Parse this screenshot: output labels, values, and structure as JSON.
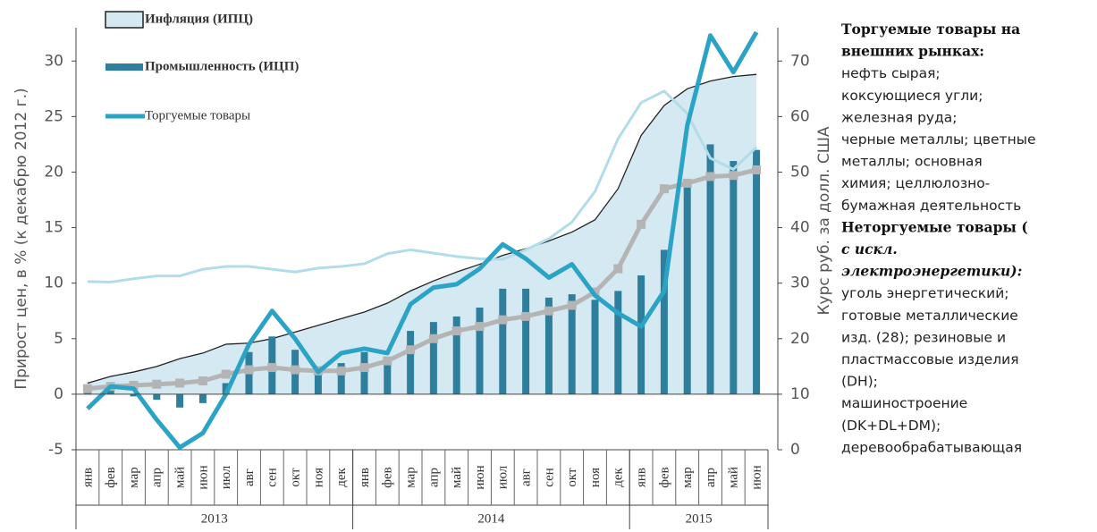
{
  "chart_data": {
    "type": "combo",
    "ylabel": "Прирост цен, в % (к декабрю 2012 г.)",
    "y2label": "Курс руб. за долл. США",
    "categories": [
      "янв",
      "фев",
      "мар",
      "апр",
      "май",
      "июн",
      "июл",
      "авг",
      "сен",
      "окт",
      "ноя",
      "дек",
      "янв",
      "фев",
      "мар",
      "апр",
      "май",
      "июн",
      "июл",
      "авг",
      "сен",
      "окт",
      "ноя",
      "дек",
      "янв",
      "фев",
      "мар",
      "апр",
      "май",
      "июн"
    ],
    "years": [
      {
        "label": "2013",
        "start": 0,
        "count": 12
      },
      {
        "label": "2014",
        "start": 12,
        "count": 12
      },
      {
        "label": "2015",
        "start": 24,
        "count": 6
      }
    ],
    "ylim": [
      -5,
      33
    ],
    "yticks": [
      -5,
      0,
      5,
      10,
      15,
      20,
      25,
      30
    ],
    "y2lim": [
      0,
      76
    ],
    "y2ticks": [
      0,
      10,
      20,
      30,
      40,
      50,
      60,
      70
    ],
    "legend": "top-left",
    "series": [
      {
        "name": "Инфляция (ИПЦ)",
        "kind": "area",
        "color": "#d4e9f1",
        "values": [
          1,
          1.6,
          2,
          2.5,
          3.2,
          3.7,
          4.5,
          4.6,
          5.0,
          5.6,
          6.2,
          6.8,
          7.4,
          8.2,
          9.3,
          10.2,
          11.0,
          11.7,
          12.5,
          13.1,
          13.8,
          14.6,
          15.7,
          18.5,
          23.3,
          26.0,
          27.5,
          28.2,
          28.6,
          28.8
        ]
      },
      {
        "name": "Промышленность (ИЦП)",
        "kind": "bar",
        "color": "#2e7f9e",
        "values": [
          0.3,
          0.5,
          -0.2,
          -0.5,
          -1.2,
          -0.8,
          1,
          3.8,
          5.2,
          4,
          2.5,
          2.8,
          3.8,
          2.8,
          5.7,
          6.5,
          7,
          7.8,
          9.5,
          9.5,
          8.7,
          9,
          8.5,
          9.3,
          10.7,
          13,
          19,
          22.5,
          21,
          22
        ]
      },
      {
        "kind": "line",
        "axis": "y2",
        "color": "#b3dce9",
        "values": [
          30.3,
          30.2,
          30.8,
          31.3,
          31.3,
          32.5,
          33,
          33,
          32.5,
          32,
          32.7,
          33,
          33.5,
          35.3,
          36,
          35.4,
          34.8,
          34.4,
          34.3,
          36,
          38,
          41,
          46.5,
          56,
          62.5,
          64.6,
          60.5,
          52.5,
          50.5,
          54.5
        ]
      },
      {
        "kind": "marker-line",
        "color": "#b4b4b4",
        "values": [
          0.5,
          0.7,
          0.8,
          0.9,
          1.0,
          1.2,
          1.8,
          2.2,
          2.4,
          2.2,
          2.1,
          2.1,
          2.4,
          3.0,
          4.0,
          5.0,
          5.7,
          6.1,
          6.7,
          7.0,
          7.5,
          8.0,
          9.2,
          11.3,
          15.3,
          18.5,
          19,
          19.6,
          19.7,
          20.2
        ]
      },
      {
        "name": "Торгуемые товары",
        "kind": "line",
        "color": "#2aa3c6",
        "values": [
          -1.3,
          0.7,
          0.5,
          -2.3,
          -4.8,
          -3.5,
          0,
          4.5,
          7.5,
          5,
          2,
          3.7,
          4.1,
          3.7,
          8.1,
          9.6,
          9.9,
          11.3,
          13.5,
          12.2,
          10.5,
          11.7,
          8.9,
          7.3,
          6.1,
          9.3,
          24.2,
          32.3,
          29,
          32.6
        ]
      }
    ]
  },
  "side_text": [
    {
      "text": "Торгуемые товары на",
      "bold": true,
      "italic": false
    },
    {
      "text": "внешних рынках:",
      "bold": true,
      "italic": false
    },
    {
      "text": "нефть сырая;",
      "bold": false,
      "italic": false
    },
    {
      "text": "коксующиеся угли;",
      "bold": false,
      "italic": false
    },
    {
      "text": "железная руда;",
      "bold": false,
      "italic": false
    },
    {
      "text": "черные металлы; цветные",
      "bold": false,
      "italic": false
    },
    {
      "text": "металлы; основная",
      "bold": false,
      "italic": false
    },
    {
      "text": "химия; целлюлозно-",
      "bold": false,
      "italic": false
    },
    {
      "text": "бумажная деятельность",
      "bold": false,
      "italic": false
    },
    {
      "text": "Неторгуемые товары (",
      "bold": true,
      "italic": false
    },
    {
      "text": "с искл.",
      "bold": true,
      "italic": true
    },
    {
      "text": "электроэнергетики):",
      "bold": true,
      "italic": true
    },
    {
      "text": "уголь энергетический;",
      "bold": false,
      "italic": false
    },
    {
      "text": "готовые металлические",
      "bold": false,
      "italic": false
    },
    {
      "text": "изд. (28); резиновые и",
      "bold": false,
      "italic": false
    },
    {
      "text": "пластмассовые изделия",
      "bold": false,
      "italic": false
    },
    {
      "text": "(DH);",
      "bold": false,
      "italic": false
    },
    {
      "text": "машиностроение",
      "bold": false,
      "italic": false
    },
    {
      "text": "(DK+DL+DM);",
      "bold": false,
      "italic": false
    },
    {
      "text": "деревообрабатывающая",
      "bold": false,
      "italic": false
    }
  ]
}
